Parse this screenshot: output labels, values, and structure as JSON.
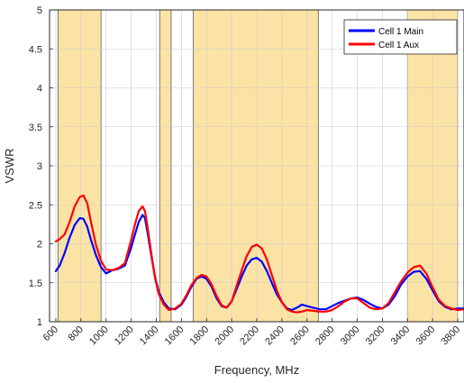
{
  "chart_data": {
    "type": "line",
    "title": "",
    "xlabel": "Frequency, MHz",
    "ylabel": "VSWR",
    "xlim": [
      550,
      3850
    ],
    "ylim": [
      1,
      5
    ],
    "x_ticks": [
      600,
      800,
      1000,
      1200,
      1400,
      1600,
      1800,
      2000,
      2200,
      2400,
      2600,
      2800,
      3000,
      3200,
      3400,
      3600,
      3800
    ],
    "y_ticks": [
      1,
      1.5,
      2,
      2.5,
      3,
      3.5,
      4,
      4.5,
      5
    ],
    "y_tick_labels": [
      "1",
      "1.5",
      "2",
      "2.5",
      "3",
      "3.5",
      "4",
      "4.5",
      "5"
    ],
    "grid": true,
    "legend_position": "top-right",
    "band_color": "#FBE3A6",
    "bands": [
      {
        "start": 617,
        "end": 960
      },
      {
        "start": 1427,
        "end": 1518
      },
      {
        "start": 1695,
        "end": 2690
      },
      {
        "start": 3400,
        "end": 3800
      }
    ],
    "series": [
      {
        "name": "Cell 1 Main",
        "color": "#0000FF",
        "x": [
          600,
          630,
          670,
          710,
          750,
          790,
          820,
          850,
          880,
          920,
          960,
          1000,
          1050,
          1100,
          1150,
          1200,
          1230,
          1260,
          1290,
          1310,
          1330,
          1360,
          1390,
          1420,
          1460,
          1500,
          1550,
          1600,
          1640,
          1680,
          1720,
          1760,
          1800,
          1840,
          1880,
          1920,
          1960,
          2000,
          2040,
          2080,
          2120,
          2160,
          2200,
          2240,
          2280,
          2320,
          2360,
          2400,
          2440,
          2480,
          2520,
          2560,
          2600,
          2650,
          2700,
          2750,
          2800,
          2850,
          2900,
          2950,
          3000,
          3050,
          3100,
          3150,
          3200,
          3250,
          3300,
          3350,
          3400,
          3450,
          3500,
          3550,
          3600,
          3650,
          3700,
          3750,
          3800,
          3850
        ],
        "values": [
          1.65,
          1.72,
          1.88,
          2.08,
          2.24,
          2.33,
          2.32,
          2.22,
          2.05,
          1.85,
          1.7,
          1.62,
          1.66,
          1.68,
          1.72,
          1.95,
          2.12,
          2.28,
          2.37,
          2.33,
          2.15,
          1.85,
          1.57,
          1.38,
          1.25,
          1.17,
          1.16,
          1.22,
          1.32,
          1.45,
          1.55,
          1.58,
          1.55,
          1.45,
          1.3,
          1.2,
          1.18,
          1.26,
          1.42,
          1.58,
          1.72,
          1.8,
          1.82,
          1.77,
          1.65,
          1.5,
          1.35,
          1.25,
          1.17,
          1.15,
          1.18,
          1.22,
          1.2,
          1.18,
          1.16,
          1.16,
          1.2,
          1.24,
          1.27,
          1.3,
          1.31,
          1.28,
          1.23,
          1.19,
          1.17,
          1.22,
          1.33,
          1.48,
          1.58,
          1.64,
          1.65,
          1.55,
          1.4,
          1.26,
          1.19,
          1.16,
          1.17,
          1.17
        ]
      },
      {
        "name": "Cell 1 Aux",
        "color": "#FF0000",
        "x": [
          600,
          630,
          670,
          710,
          750,
          790,
          820,
          850,
          880,
          920,
          960,
          1000,
          1050,
          1100,
          1150,
          1200,
          1230,
          1260,
          1290,
          1310,
          1330,
          1360,
          1390,
          1420,
          1460,
          1500,
          1550,
          1600,
          1640,
          1680,
          1720,
          1760,
          1800,
          1840,
          1880,
          1920,
          1960,
          2000,
          2040,
          2080,
          2120,
          2160,
          2200,
          2240,
          2280,
          2320,
          2360,
          2400,
          2440,
          2480,
          2520,
          2560,
          2600,
          2650,
          2700,
          2750,
          2800,
          2850,
          2900,
          2950,
          3000,
          3050,
          3100,
          3150,
          3200,
          3250,
          3300,
          3350,
          3400,
          3450,
          3500,
          3550,
          3600,
          3650,
          3700,
          3750,
          3800,
          3850
        ],
        "values": [
          2.03,
          2.06,
          2.12,
          2.28,
          2.48,
          2.6,
          2.62,
          2.52,
          2.28,
          1.98,
          1.78,
          1.67,
          1.66,
          1.69,
          1.75,
          2.05,
          2.25,
          2.42,
          2.48,
          2.42,
          2.22,
          1.88,
          1.56,
          1.35,
          1.22,
          1.15,
          1.17,
          1.23,
          1.34,
          1.47,
          1.56,
          1.6,
          1.58,
          1.48,
          1.33,
          1.21,
          1.18,
          1.26,
          1.46,
          1.66,
          1.84,
          1.96,
          1.99,
          1.94,
          1.8,
          1.6,
          1.4,
          1.25,
          1.16,
          1.13,
          1.12,
          1.13,
          1.15,
          1.14,
          1.13,
          1.13,
          1.15,
          1.2,
          1.26,
          1.3,
          1.3,
          1.24,
          1.18,
          1.16,
          1.17,
          1.24,
          1.38,
          1.52,
          1.63,
          1.7,
          1.72,
          1.62,
          1.44,
          1.28,
          1.2,
          1.17,
          1.15,
          1.16
        ]
      }
    ]
  }
}
